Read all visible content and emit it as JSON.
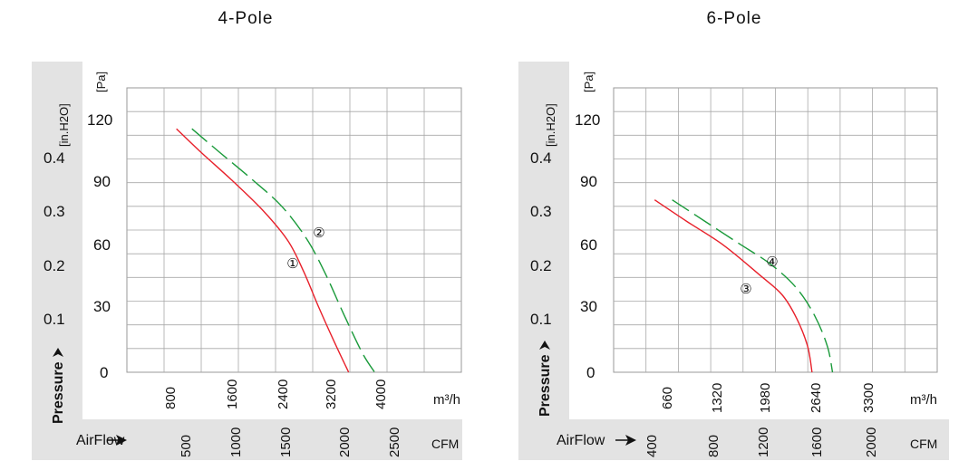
{
  "chart_data": [
    {
      "type": "line",
      "title": "4-Pole",
      "pressure_label": "Pressure",
      "airflow_label": "AirFlow",
      "unit_pa": "[Pa]",
      "unit_inh2o": "[in.H2O]",
      "unit_m3h": "m³/h",
      "unit_cfm": "CFM",
      "x_m3h_ticks": [
        "800",
        "1600",
        "2400",
        "3200",
        "4000"
      ],
      "x_cfm_ticks": [
        "500",
        "1000",
        "1500",
        "2000",
        "2500"
      ],
      "y_pa_ticks": [
        "0",
        "30",
        "60",
        "90",
        "120"
      ],
      "y_inh2o_ticks": [
        "0.1",
        "0.2",
        "0.3",
        "0.4"
      ],
      "xlim": [
        0,
        5400
      ],
      "ylim": [
        0,
        132
      ],
      "grid": true,
      "series": [
        {
          "name": "①",
          "color": "#e8202a",
          "dash": "solid",
          "points": [
            [
              800,
              113
            ],
            [
              1200,
              102
            ],
            [
              1700,
              89
            ],
            [
              2200,
              75
            ],
            [
              2600,
              61
            ],
            [
              2850,
              47
            ],
            [
              3100,
              30
            ],
            [
              3350,
              14
            ],
            [
              3580,
              0
            ]
          ]
        },
        {
          "name": "②",
          "color": "#1a9a3a",
          "dash": "dashed",
          "points": [
            [
              1050,
              113
            ],
            [
              1500,
              102
            ],
            [
              2000,
              90
            ],
            [
              2500,
              77
            ],
            [
              2900,
              62
            ],
            [
              3200,
              46
            ],
            [
              3500,
              27
            ],
            [
              3800,
              9
            ],
            [
              4000,
              0
            ]
          ]
        }
      ]
    },
    {
      "type": "line",
      "title": "6-Pole",
      "pressure_label": "Pressure",
      "airflow_label": "AirFlow",
      "unit_pa": "[Pa]",
      "unit_inh2o": "[in.H2O]",
      "unit_m3h": "m³/h",
      "unit_cfm": "CFM",
      "x_m3h_ticks": [
        "660",
        "1320",
        "1980",
        "2640",
        "3300"
      ],
      "x_cfm_ticks": [
        "400",
        "800",
        "1200",
        "1600",
        "2000"
      ],
      "y_pa_ticks": [
        "0",
        "30",
        "60",
        "90",
        "120"
      ],
      "y_inh2o_ticks": [
        "0.1",
        "0.2",
        "0.3",
        "0.4"
      ],
      "xlim": [
        0,
        4420
      ],
      "ylim": [
        0,
        132
      ],
      "grid": true,
      "series": [
        {
          "name": "③",
          "color": "#e8202a",
          "dash": "solid",
          "points": [
            [
              560,
              80
            ],
            [
              1000,
              70
            ],
            [
              1500,
              59
            ],
            [
              2000,
              45
            ],
            [
              2300,
              36
            ],
            [
              2500,
              25
            ],
            [
              2650,
              12
            ],
            [
              2710,
              0
            ]
          ]
        },
        {
          "name": "④",
          "color": "#1a9a3a",
          "dash": "dashed",
          "points": [
            [
              800,
              80
            ],
            [
              1250,
              70
            ],
            [
              1700,
              60
            ],
            [
              2150,
              50
            ],
            [
              2500,
              39
            ],
            [
              2750,
              26
            ],
            [
              2920,
              12
            ],
            [
              2990,
              0
            ]
          ]
        }
      ]
    }
  ]
}
